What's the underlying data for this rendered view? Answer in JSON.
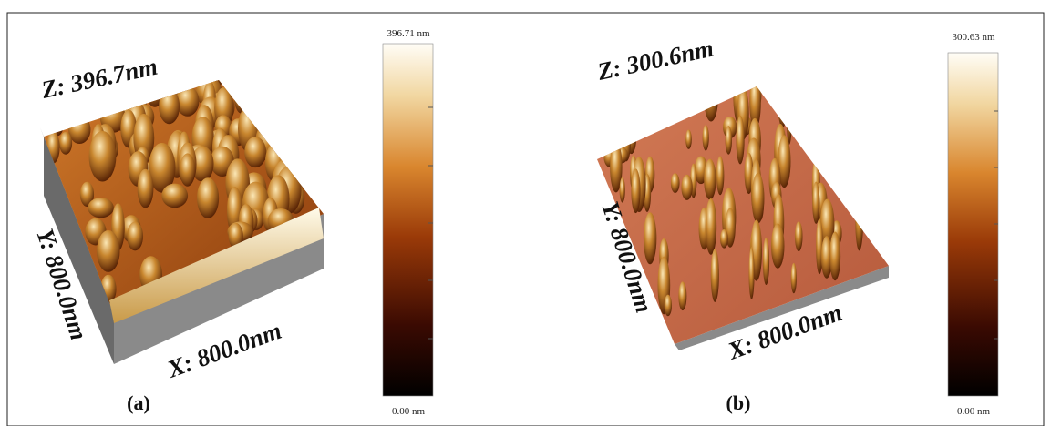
{
  "panels": [
    {
      "z_label": "Z: 396.7nm",
      "y_label": "Y: 800.0nm",
      "x_label": "X: 800.0nm",
      "caption": "(a)",
      "scale_max": "396.71 nm",
      "scale_min": "0.00 nm"
    },
    {
      "z_label": "Z: 300.6nm",
      "y_label": "Y: 800.0nm",
      "x_label": "X: 800.0nm",
      "caption": "(b)",
      "scale_max": "300.63 nm",
      "scale_min": "0.00 nm"
    }
  ]
}
